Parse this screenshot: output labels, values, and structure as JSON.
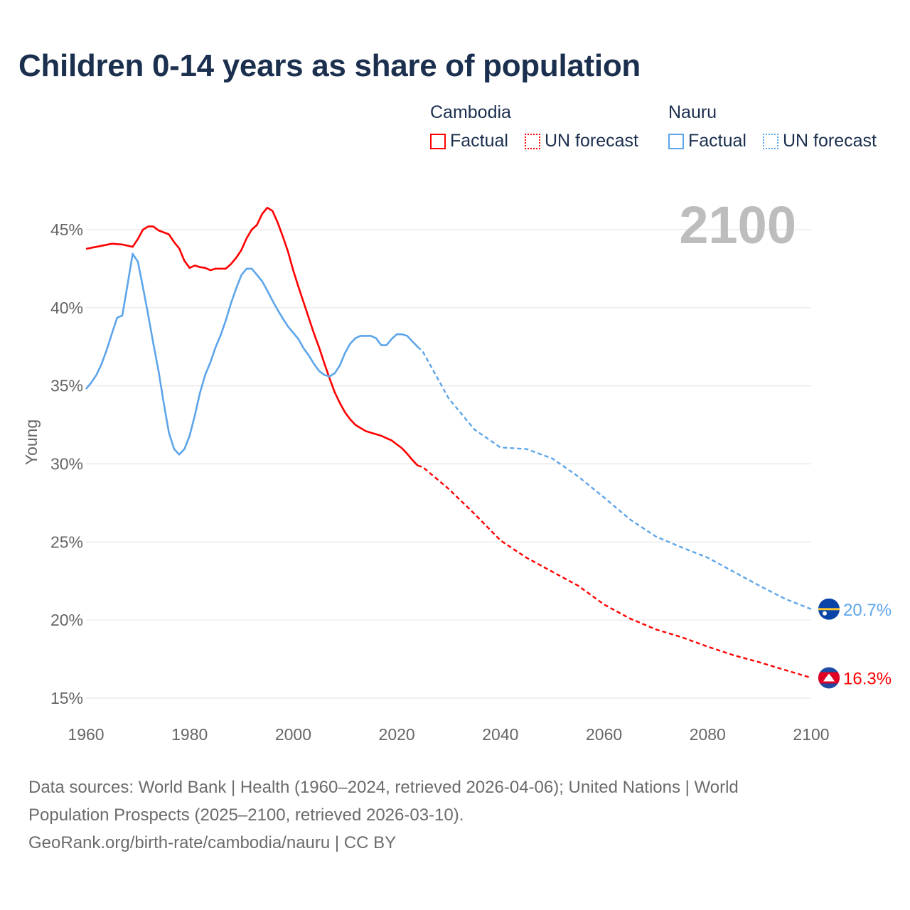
{
  "chart_data": {
    "type": "line",
    "title": "Children 0-14 years as share of population",
    "ylabel": "Young",
    "xlabel": "",
    "xlim": [
      1960,
      2100
    ],
    "ylim": [
      15,
      45
    ],
    "x_ticks": [
      "1960",
      "1980",
      "2000",
      "2020",
      "2040",
      "2060",
      "2080",
      "2100"
    ],
    "y_ticks": [
      "15%",
      "20%",
      "25%",
      "30%",
      "35%",
      "40%",
      "45%"
    ],
    "grid": true,
    "year_overlay": "2100",
    "legend": {
      "placement": "top-right",
      "groups": [
        {
          "country": "Cambodia",
          "factual_label": "Factual",
          "forecast_label": "UN forecast"
        },
        {
          "country": "Nauru",
          "factual_label": "Factual",
          "forecast_label": "UN forecast"
        }
      ]
    },
    "series": [
      {
        "name": "Cambodia",
        "color": "#ff0000",
        "end_label": "16.3%",
        "factual": {
          "x": [
            1960,
            1962,
            1965,
            1967,
            1969,
            1970,
            1971,
            1972,
            1973,
            1974,
            1976,
            1977,
            1978,
            1979,
            1980,
            1981,
            1982,
            1983,
            1984,
            1985,
            1986,
            1987,
            1988,
            1989,
            1990,
            1991,
            1992,
            1993,
            1994,
            1995,
            1996,
            1997,
            1998,
            1999,
            2000,
            2001,
            2002,
            2003,
            2004,
            2005,
            2006,
            2007,
            2008,
            2009,
            2010,
            2011,
            2012,
            2013,
            2014,
            2015,
            2016,
            2017,
            2018,
            2019,
            2020,
            2021,
            2022,
            2023,
            2024
          ],
          "y": [
            43.77,
            43.9,
            44.1,
            44.05,
            43.9,
            44.4,
            45.0,
            45.2,
            45.2,
            44.95,
            44.7,
            44.2,
            43.8,
            43.0,
            42.55,
            42.7,
            42.6,
            42.55,
            42.4,
            42.5,
            42.5,
            42.5,
            42.8,
            43.2,
            43.7,
            44.45,
            45.0,
            45.3,
            46.0,
            46.4,
            46.2,
            45.45,
            44.55,
            43.6,
            42.4,
            41.35,
            40.35,
            39.35,
            38.35,
            37.45,
            36.45,
            35.5,
            34.6,
            33.9,
            33.3,
            32.85,
            32.5,
            32.3,
            32.1,
            32.0,
            31.9,
            31.8,
            31.65,
            31.5,
            31.25,
            31.0,
            30.65,
            30.25,
            29.9
          ]
        },
        "forecast": {
          "x": [
            2024,
            2025,
            2030,
            2035,
            2040,
            2045,
            2050,
            2055,
            2060,
            2065,
            2070,
            2075,
            2080,
            2085,
            2090,
            2095,
            2100
          ],
          "y": [
            29.9,
            29.8,
            28.4,
            26.8,
            25.1,
            24.0,
            23.1,
            22.2,
            21.0,
            20.1,
            19.4,
            18.9,
            18.3,
            17.75,
            17.3,
            16.8,
            16.3
          ]
        }
      },
      {
        "name": "Nauru",
        "color": "#5da5ea",
        "end_label": "20.7%",
        "factual": {
          "x": [
            1960,
            1961,
            1962,
            1963,
            1964,
            1965,
            1966,
            1967,
            1968,
            1969,
            1970,
            1971,
            1972,
            1973,
            1974,
            1975,
            1976,
            1977,
            1978,
            1979,
            1980,
            1981,
            1982,
            1983,
            1984,
            1985,
            1986,
            1987,
            1988,
            1989,
            1990,
            1991,
            1992,
            1993,
            1994,
            1995,
            1996,
            1997,
            1998,
            1999,
            2000,
            2001,
            2002,
            2003,
            2004,
            2005,
            2006,
            2007,
            2008,
            2009,
            2010,
            2011,
            2012,
            2013,
            2014,
            2015,
            2016,
            2017,
            2018,
            2019,
            2020,
            2021,
            2022,
            2023,
            2024
          ],
          "y": [
            34.8,
            35.2,
            35.7,
            36.4,
            37.3,
            38.35,
            39.35,
            39.5,
            41.45,
            43.45,
            42.95,
            41.3,
            39.55,
            37.7,
            35.95,
            33.9,
            32.0,
            30.95,
            30.6,
            30.95,
            31.8,
            33.1,
            34.55,
            35.7,
            36.5,
            37.45,
            38.25,
            39.2,
            40.3,
            41.25,
            42.1,
            42.5,
            42.5,
            42.1,
            41.7,
            41.1,
            40.45,
            39.85,
            39.3,
            38.8,
            38.4,
            38.0,
            37.4,
            36.95,
            36.4,
            35.95,
            35.7,
            35.6,
            35.8,
            36.3,
            37.1,
            37.7,
            38.05,
            38.2,
            38.2,
            38.2,
            38.05,
            37.6,
            37.6,
            38.0,
            38.3,
            38.3,
            38.2,
            37.85,
            37.5
          ]
        },
        "forecast": {
          "x": [
            2024,
            2025,
            2030,
            2035,
            2040,
            2045,
            2050,
            2055,
            2060,
            2065,
            2070,
            2075,
            2080,
            2085,
            2090,
            2095,
            2100
          ],
          "y": [
            37.5,
            37.2,
            34.2,
            32.2,
            31.05,
            30.95,
            30.35,
            29.2,
            27.85,
            26.45,
            25.35,
            24.65,
            24.0,
            23.1,
            22.2,
            21.35,
            20.7
          ]
        }
      }
    ]
  },
  "footer": {
    "line1": "Data sources: World Bank | Health (1960–2024, retrieved 2026-04-06); United Nations | World",
    "line2": "Population Prospects (2025–2100, retrieved 2026-03-10).",
    "line3": "GeoRank.org/birth-rate/cambodia/nauru | CC BY"
  }
}
